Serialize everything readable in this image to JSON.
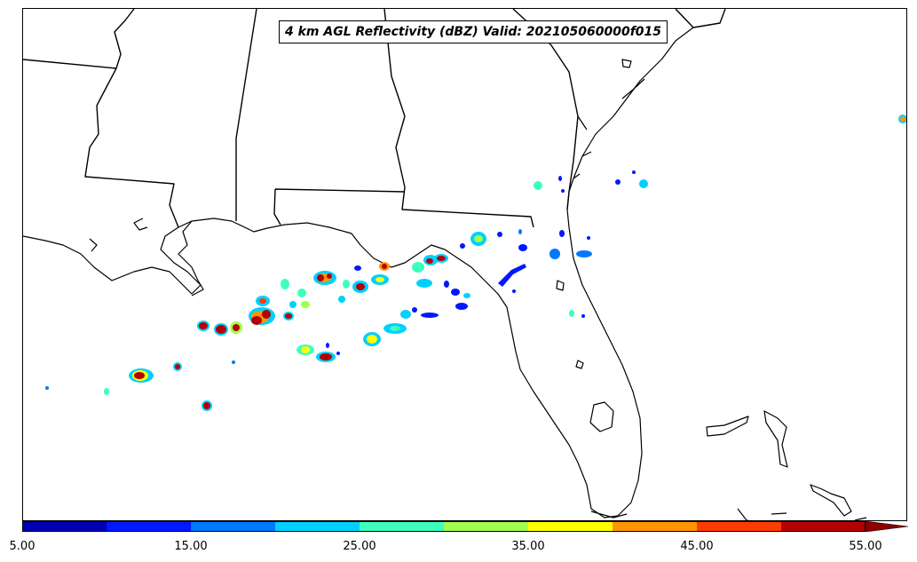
{
  "title": "4 km AGL Reflectivity (dBZ) Valid: 202105060000f015",
  "colorbar": {
    "colors": [
      "#0000b4",
      "#0018ff",
      "#0078ff",
      "#00d0ff",
      "#3cffbe",
      "#a0ff50",
      "#ffff00",
      "#ff9600",
      "#ff3c00",
      "#b40000"
    ],
    "extend_color": "#8c0000",
    "tick_labels": [
      "5.00",
      "15.00",
      "25.00",
      "35.00",
      "45.00",
      "55.00"
    ]
  }
}
